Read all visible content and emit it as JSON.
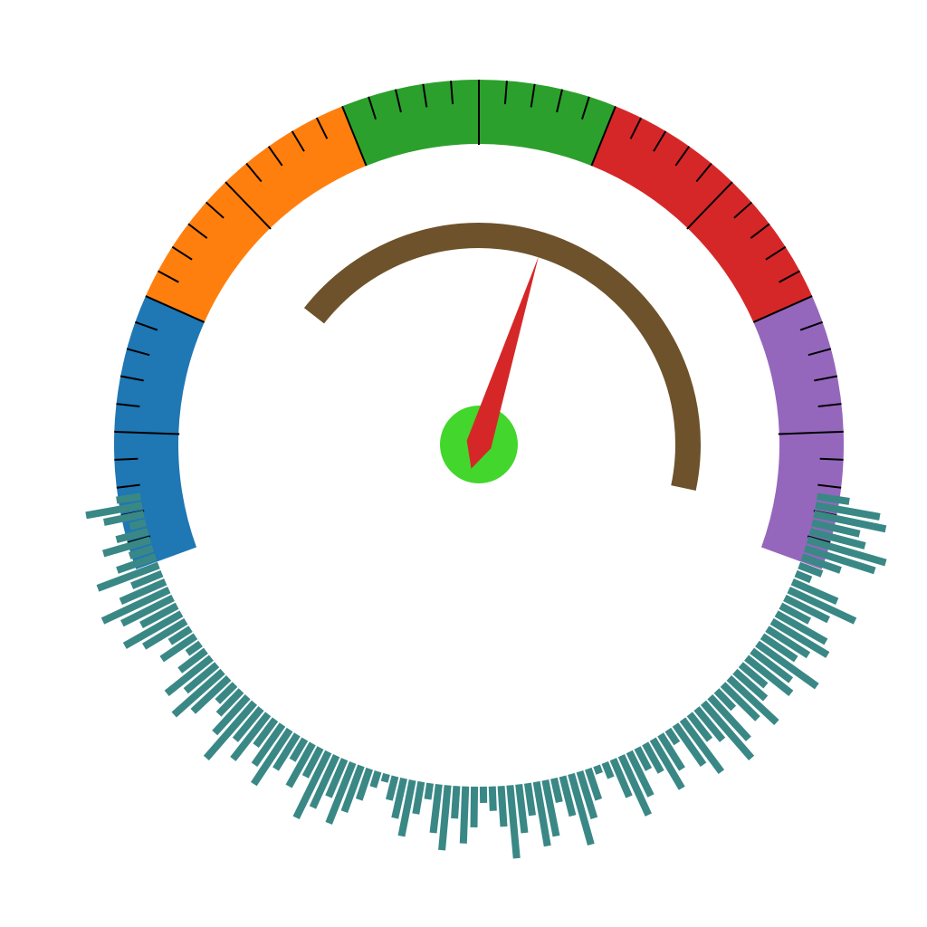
{
  "chart_data": {
    "type": "gauge",
    "title": "",
    "scale": {
      "min": 0,
      "max": 100,
      "major_step": 10,
      "minor_step": 2,
      "start_angle_deg": -110,
      "end_angle_deg": 110
    },
    "bands": [
      {
        "from": 0,
        "to": 20,
        "color": "#1f77b4"
      },
      {
        "from": 20,
        "to": 40,
        "color": "#ff7f0e"
      },
      {
        "from": 40,
        "to": 60,
        "color": "#2ca02c"
      },
      {
        "from": 60,
        "to": 80,
        "color": "#d62728"
      },
      {
        "from": 80,
        "to": 100,
        "color": "#9467bd"
      }
    ],
    "value": 58,
    "value_arc": {
      "from": 0,
      "to": 100,
      "color": "#6e522b"
    },
    "needle_color": "#d62728",
    "hub_color": "#43d62d",
    "radial_bars": {
      "color": "#3a8886",
      "start_angle_deg": 98,
      "end_angle_deg": 262,
      "values": [
        0.4,
        0.8,
        0.9,
        0.6,
        0.7,
        1.0,
        0.9,
        0.5,
        0.3,
        0.2,
        0.6,
        0.9,
        0.6,
        0.4,
        0.7,
        0.8,
        0.6,
        0.5,
        0.9,
        0.6,
        0.7,
        0.4,
        0.5,
        0.8,
        0.6,
        0.3,
        0.7,
        0.9,
        0.5,
        0.4,
        0.8,
        0.6,
        0.2,
        0.5,
        0.7,
        0.4,
        0.3,
        0.6,
        0.8,
        0.5,
        0.2,
        0.1,
        0.4,
        0.6,
        0.9,
        0.5,
        0.3,
        0.7,
        0.8,
        0.4,
        0.6,
        0.9,
        0.5,
        0.3,
        0.2,
        0.5,
        0.7,
        0.4,
        0.8,
        0.6,
        0.2,
        0.4,
        0.7,
        0.5,
        0.3,
        0.1,
        0.2,
        0.4,
        0.6,
        0.8,
        0.5,
        0.7,
        0.9,
        0.4,
        0.6,
        0.3,
        0.5,
        0.8,
        0.6,
        0.4,
        0.7,
        0.5,
        0.9,
        0.6,
        0.4,
        0.3,
        0.6,
        0.8,
        0.5,
        0.7,
        0.4,
        0.2,
        0.5,
        0.3,
        0.6,
        0.8,
        0.5,
        0.7,
        0.9,
        0.6,
        0.4,
        0.8,
        0.5,
        0.3,
        0.6,
        0.4,
        0.2,
        0.5,
        0.7,
        0.3
      ]
    }
  }
}
